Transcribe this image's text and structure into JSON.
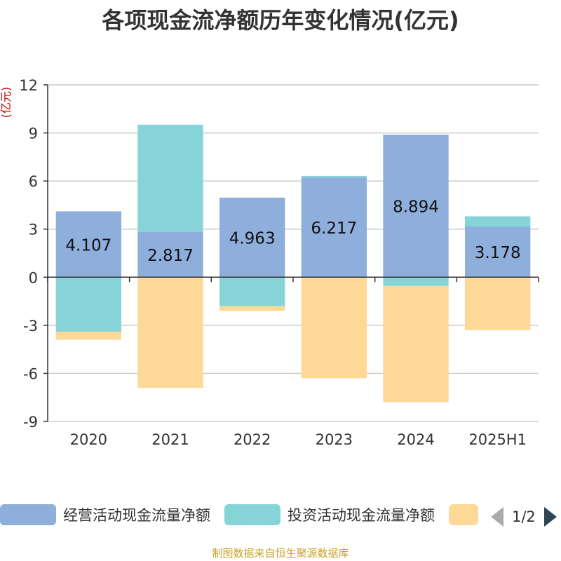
{
  "title": "各项现金流净额历年变化情况(亿元)",
  "source": "制图数据来自恒生聚源数据库",
  "legend_pager": "1/2",
  "colors": {
    "operating": "#8eaedb",
    "investing": "#86d4d8",
    "financing": "#fed896",
    "axis": "#333333",
    "grid": "#cccccc",
    "unit": "#cc0000"
  },
  "chart_data": {
    "type": "bar",
    "stacked": true,
    "categories": [
      "2020",
      "2021",
      "2022",
      "2023",
      "2024",
      "2025H1"
    ],
    "ylabel": "(亿元)",
    "ylim": [
      -9,
      12
    ],
    "yticks": [
      "-9",
      "-6",
      "-3",
      "0",
      "3",
      "6",
      "9",
      "12"
    ],
    "grid": true,
    "legend_position": "bottom",
    "series": [
      {
        "name": "经营活动现金流量净额",
        "values": [
          4.107,
          2.817,
          4.963,
          6.217,
          8.894,
          3.178
        ],
        "labels": [
          "4.107",
          "2.817",
          "4.963",
          "6.217",
          "8.894",
          "3.178"
        ]
      },
      {
        "name": "投资活动现金流量净额",
        "values": [
          -3.4,
          6.7,
          -1.8,
          0.1,
          -0.55,
          0.62
        ]
      },
      {
        "name": "",
        "values": [
          -0.5,
          -6.9,
          -0.3,
          -6.3,
          -7.25,
          -3.3
        ]
      }
    ]
  }
}
